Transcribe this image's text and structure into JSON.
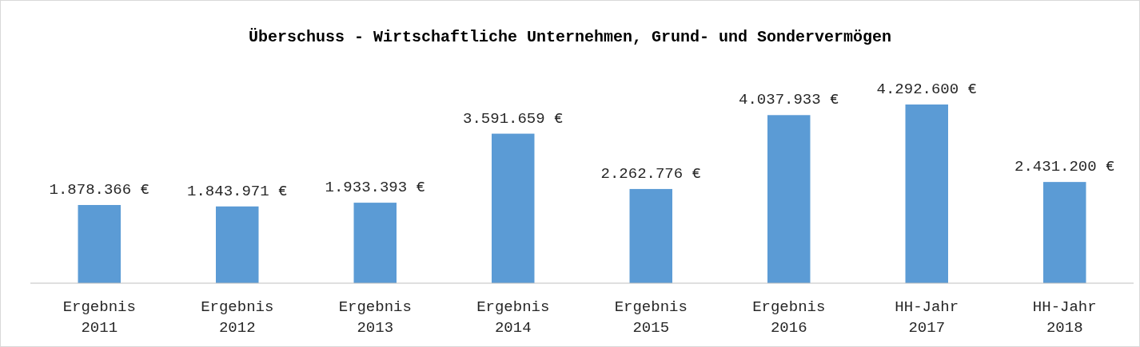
{
  "chart_data": {
    "type": "bar",
    "title": "Überschuss - Wirtschaftliche Unternehmen, Grund- und Sondervermögen",
    "categories": [
      "Ergebnis 2011",
      "Ergebnis 2012",
      "Ergebnis 2013",
      "Ergebnis 2014",
      "Ergebnis 2015",
      "Ergebnis 2016",
      "HH-Jahr 2017",
      "HH-Jahr 2018"
    ],
    "values": [
      1878366,
      1843971,
      1933393,
      3591659,
      2262776,
      4037933,
      4292600,
      2431200
    ],
    "value_labels": [
      "1.878.366 €",
      "1.843.971 €",
      "1.933.393 €",
      "3.591.659 €",
      "2.262.776 €",
      "4.037.933 €",
      "4.292.600 €",
      "2.431.200 €"
    ],
    "color": "#5b9bd5"
  }
}
